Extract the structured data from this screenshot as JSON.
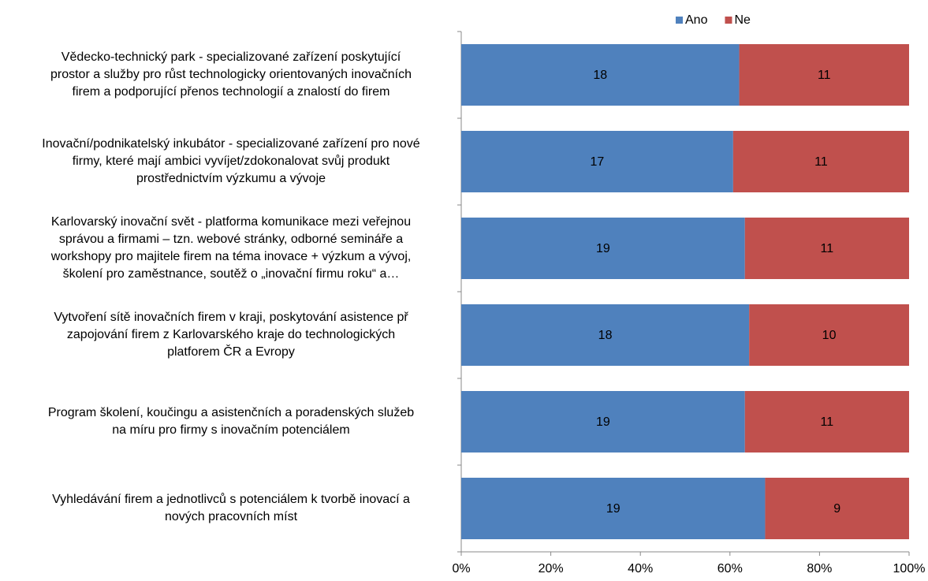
{
  "chart_data": {
    "type": "bar",
    "orientation": "horizontal",
    "stacked": "percent",
    "categories": [
      "Vědecko-technický park - specializované zařízení poskytující\nprostor a služby pro růst technologicky orientovaných inovačních\nfirem a podporující přenos technologií a znalostí do firem",
      "Inovační/podnikatelský inkubátor - specializované zařízení pro nové\nfirmy, které mají ambici vyvíjet/zdokonalovat svůj produkt\nprostřednictvím výzkumu a vývoje",
      "Karlovarský inovační svět - platforma komunikace mezi veřejnou\nsprávou a firmami – tzn. webové stránky, odborné semináře a\nworkshopy pro majitele firem na téma inovace + výzkum a vývoj,\nškolení pro zaměstnance, soutěž o „inovační firmu roku“ a…",
      "Vytvoření sítě inovačních firem v kraji, poskytování asistence př\nzapojování firem z Karlovarského kraje do technologických\nplatforem ČR a Evropy",
      "Program školení, koučingu a asistenčních a poradenských služeb\nna míru pro firmy s inovačním potenciálem",
      "Vyhledávání firem a jednotlivců s potenciálem k tvorbě inovací a\nnových pracovních míst"
    ],
    "series": [
      {
        "name": "Ano",
        "color": "#4f81bd",
        "values": [
          18,
          17,
          19,
          18,
          19,
          19
        ]
      },
      {
        "name": "Ne",
        "color": "#c0504d",
        "values": [
          11,
          11,
          11,
          10,
          11,
          9
        ]
      }
    ],
    "xlim": [
      0,
      100
    ],
    "xticks": [
      {
        "value": 0,
        "label": "0%"
      },
      {
        "value": 20,
        "label": "20%"
      },
      {
        "value": 40,
        "label": "40%"
      },
      {
        "value": 60,
        "label": "60%"
      },
      {
        "value": 80,
        "label": "80%"
      },
      {
        "value": 100,
        "label": "100%"
      }
    ],
    "legend": "top"
  }
}
